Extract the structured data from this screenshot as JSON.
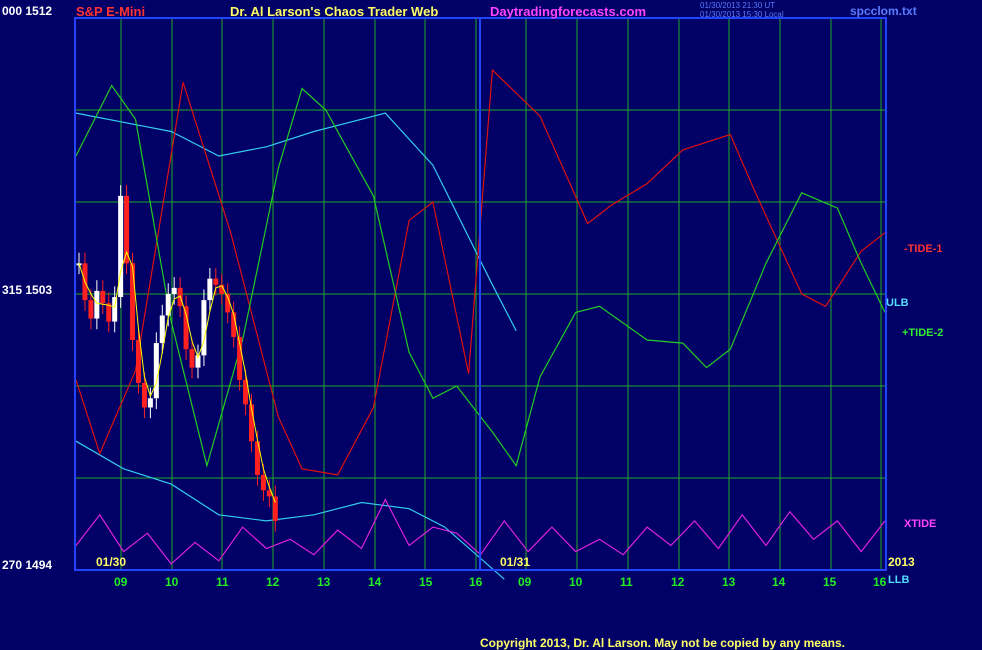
{
  "header": {
    "symbol": "S&P E-Mini",
    "title": "Dr. Al Larson's Chaos Trader Web",
    "site": "Daytradingforecasts.com",
    "timestamp_ut": "01/30/2013 21:30 UT",
    "timestamp_local": "01/30/2013 15:30 Local",
    "file": "spcclom.txt"
  },
  "y_axis": {
    "top_label": "000 1512",
    "mid_label": "315 1503",
    "bottom_label": "270 1494"
  },
  "right_labels": {
    "tide1": "-TIDE-1",
    "ulb": "ULB",
    "tide2": "+TIDE-2",
    "xtide": "XTIDE",
    "year": "2013",
    "llb": "LLB"
  },
  "x_axis": {
    "day1": "01/30",
    "day2": "01/31",
    "hours": [
      "09",
      "10",
      "11",
      "12",
      "13",
      "14",
      "15",
      "16",
      "09",
      "10",
      "11",
      "12",
      "13",
      "14",
      "15",
      "16"
    ]
  },
  "footer": {
    "copyright": "Copyright 2013, Dr. Al Larson. May not be copied by any means."
  },
  "colors": {
    "background": "#000066",
    "grid": "#22aa22",
    "frame": "#2244ff",
    "price_up": "#ffffff",
    "price_down": "#ff2020",
    "moving_average": "#ffff00",
    "tide1": "#dd1111",
    "tide2": "#22cc22",
    "bands": "#33ccee",
    "xtide": "#dd22dd"
  },
  "chart_data": {
    "type": "line",
    "title": "S&P E-Mini",
    "ylim": [
      1494,
      1512
    ],
    "ytick_labels": [
      "1512",
      "1503",
      "1494"
    ],
    "x_tick_labels": [
      "09",
      "10",
      "11",
      "12",
      "13",
      "14",
      "15",
      "16",
      "09",
      "10",
      "11",
      "12",
      "13",
      "14",
      "15",
      "16"
    ],
    "x_day_labels": [
      "01/30",
      "01/31"
    ],
    "price_close": [
      1504.0,
      1502.8,
      1502.2,
      1503.1,
      1502.7,
      1502.1,
      1502.9,
      1506.2,
      1504.0,
      1501.5,
      1500.1,
      1499.3,
      1499.6,
      1501.4,
      1502.3,
      1503.0,
      1503.2,
      1502.6,
      1501.2,
      1500.6,
      1501.0,
      1502.8,
      1503.5,
      1503.3,
      1503.0,
      1502.4,
      1501.6,
      1500.2,
      1499.4,
      1498.2,
      1497.1,
      1496.6,
      1496.4,
      1495.6
    ],
    "series": [
      {
        "name": "-TIDE-1",
        "points": [
          [
            0,
            1500.2
          ],
          [
            2,
            1497.8
          ],
          [
            5,
            1500.5
          ],
          [
            9,
            1509.9
          ],
          [
            13,
            1505
          ],
          [
            17,
            1499
          ],
          [
            19,
            1497.3
          ],
          [
            22,
            1497.1
          ],
          [
            25,
            1499.3
          ],
          [
            28,
            1505.4
          ],
          [
            30,
            1506
          ],
          [
            33,
            1500.4
          ],
          [
            35,
            1510.3
          ],
          [
            39,
            1508.8
          ],
          [
            43,
            1505.3
          ],
          [
            45,
            1505.9
          ],
          [
            48,
            1506.6
          ],
          [
            51,
            1507.7
          ],
          [
            55,
            1508.2
          ],
          [
            57,
            1506.4
          ],
          [
            61,
            1503
          ],
          [
            63,
            1502.6
          ],
          [
            66,
            1504.4
          ],
          [
            68,
            1505
          ]
        ]
      },
      {
        "name": "+TIDE-2",
        "points": [
          [
            0,
            1507.5
          ],
          [
            3,
            1509.8
          ],
          [
            5,
            1508.7
          ],
          [
            8,
            1502.1
          ],
          [
            11,
            1497.4
          ],
          [
            14,
            1501.5
          ],
          [
            17,
            1507.1
          ],
          [
            19,
            1509.7
          ],
          [
            21,
            1509
          ],
          [
            25,
            1506.2
          ],
          [
            28,
            1501.1
          ],
          [
            30,
            1499.6
          ],
          [
            32,
            1500
          ],
          [
            35,
            1498.5
          ],
          [
            37,
            1497.4
          ],
          [
            39,
            1500.3
          ],
          [
            42,
            1502.4
          ],
          [
            44,
            1502.6
          ],
          [
            48,
            1501.5
          ],
          [
            51,
            1501.4
          ],
          [
            53,
            1500.6
          ],
          [
            55,
            1501.2
          ],
          [
            58,
            1504
          ],
          [
            61,
            1506.3
          ],
          [
            64,
            1505.8
          ],
          [
            66,
            1504
          ],
          [
            68,
            1502.4
          ]
        ]
      },
      {
        "name": "ULB",
        "points": [
          [
            0,
            1508.9
          ],
          [
            4,
            1508.6
          ],
          [
            8,
            1508.3
          ],
          [
            12,
            1507.5
          ],
          [
            16,
            1507.8
          ],
          [
            20,
            1508.3
          ],
          [
            26,
            1508.9
          ],
          [
            30,
            1507.2
          ],
          [
            35,
            1503.3
          ],
          [
            37,
            1501.8
          ]
        ]
      },
      {
        "name": "LLB",
        "points": [
          [
            0,
            1498.2
          ],
          [
            4,
            1497.3
          ],
          [
            8,
            1496.8
          ],
          [
            12,
            1495.8
          ],
          [
            16,
            1495.6
          ],
          [
            20,
            1495.8
          ],
          [
            24,
            1496.2
          ],
          [
            28,
            1496.0
          ],
          [
            31,
            1495.4
          ],
          [
            36,
            1493.7
          ]
        ]
      },
      {
        "name": "XTIDE",
        "points": [
          [
            0,
            1494.8
          ],
          [
            2,
            1495.8
          ],
          [
            4,
            1494.6
          ],
          [
            6,
            1495.2
          ],
          [
            8,
            1494.2
          ],
          [
            10,
            1494.9
          ],
          [
            12,
            1494.3
          ],
          [
            14,
            1495.4
          ],
          [
            16,
            1494.7
          ],
          [
            18,
            1495.0
          ],
          [
            20,
            1494.5
          ],
          [
            22,
            1495.3
          ],
          [
            24,
            1494.7
          ],
          [
            26,
            1496.3
          ],
          [
            28,
            1494.8
          ],
          [
            30,
            1495.4
          ],
          [
            32,
            1495.2
          ],
          [
            34,
            1494.5
          ],
          [
            36,
            1495.6
          ],
          [
            38,
            1494.6
          ],
          [
            40,
            1495.4
          ],
          [
            42,
            1494.6
          ],
          [
            44,
            1495.0
          ],
          [
            46,
            1494.5
          ],
          [
            48,
            1495.4
          ],
          [
            50,
            1494.8
          ],
          [
            52,
            1495.6
          ],
          [
            54,
            1494.7
          ],
          [
            56,
            1495.8
          ],
          [
            58,
            1494.8
          ],
          [
            60,
            1495.9
          ],
          [
            62,
            1495.0
          ],
          [
            64,
            1495.6
          ],
          [
            66,
            1494.6
          ],
          [
            68,
            1495.6
          ]
        ]
      }
    ],
    "grid": true,
    "legend": "right"
  }
}
